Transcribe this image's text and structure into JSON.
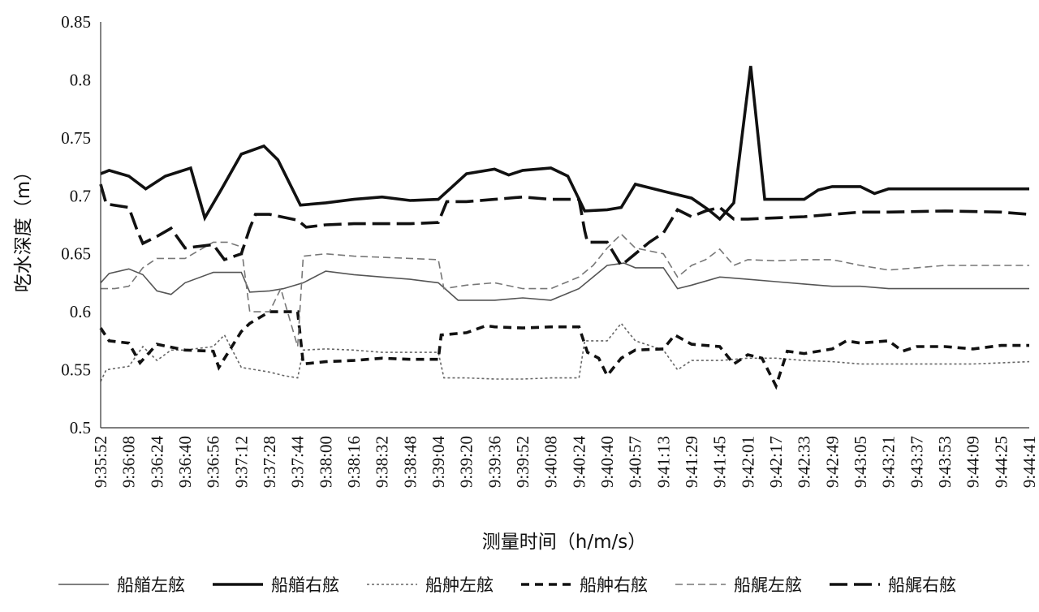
{
  "chart_data": {
    "type": "line",
    "title": "",
    "xlabel": "测量时间（h/m/s）",
    "ylabel": "吃水深度（m）",
    "ylim": [
      0.5,
      0.85
    ],
    "yticks": [
      "0.85",
      "0.8",
      "0.75",
      "0.7",
      "0.65",
      "0.6",
      "0.55",
      "0.5"
    ],
    "grid": false,
    "legend_position": "bottom",
    "categories": [
      "9:35:52",
      "9:36:08",
      "9:36:24",
      "9:36:40",
      "9:36:56",
      "9:37:12",
      "9:37:28",
      "9:37:44",
      "9:38:00",
      "9:38:16",
      "9:38:32",
      "9:38:48",
      "9:39:04",
      "9:39:20",
      "9:39:36",
      "9:39:52",
      "9:40:08",
      "9:40:24",
      "9:40:40",
      "9:40:57",
      "9:41:13",
      "9:41:29",
      "9:41:45",
      "9:42:01",
      "9:42:17",
      "9:42:33",
      "9:42:49",
      "9:43:05",
      "9:43:21",
      "9:43:37",
      "9:43:53",
      "9:44:09",
      "9:44:25",
      "9:44:41"
    ],
    "series": [
      {
        "name": "船艏左舷",
        "style": "thin-solid",
        "points": [
          [
            0,
            0.625
          ],
          [
            0.3,
            0.633
          ],
          [
            1,
            0.637
          ],
          [
            1.5,
            0.632
          ],
          [
            2,
            0.618
          ],
          [
            2.5,
            0.615
          ],
          [
            3,
            0.625
          ],
          [
            4,
            0.634
          ],
          [
            5,
            0.634
          ],
          [
            5.3,
            0.617
          ],
          [
            6,
            0.618
          ],
          [
            6.5,
            0.62
          ],
          [
            7.2,
            0.625
          ],
          [
            8,
            0.635
          ],
          [
            9,
            0.632
          ],
          [
            10,
            0.63
          ],
          [
            11,
            0.628
          ],
          [
            12,
            0.625
          ],
          [
            12.7,
            0.61
          ],
          [
            14,
            0.61
          ],
          [
            15,
            0.612
          ],
          [
            16,
            0.61
          ],
          [
            17,
            0.62
          ],
          [
            17.5,
            0.63
          ],
          [
            18,
            0.64
          ],
          [
            18.6,
            0.642
          ],
          [
            19,
            0.638
          ],
          [
            20,
            0.638
          ],
          [
            20.5,
            0.62
          ],
          [
            21,
            0.623
          ],
          [
            22,
            0.63
          ],
          [
            23,
            0.628
          ],
          [
            24,
            0.626
          ],
          [
            25,
            0.624
          ],
          [
            26,
            0.622
          ],
          [
            27,
            0.622
          ],
          [
            28,
            0.62
          ],
          [
            30,
            0.62
          ],
          [
            31,
            0.62
          ],
          [
            33,
            0.62
          ]
        ]
      },
      {
        "name": "船艏右舷",
        "style": "thick-solid",
        "points": [
          [
            0,
            0.719
          ],
          [
            0.3,
            0.722
          ],
          [
            1,
            0.717
          ],
          [
            1.6,
            0.706
          ],
          [
            2.3,
            0.717
          ],
          [
            3.2,
            0.724
          ],
          [
            3.7,
            0.681
          ],
          [
            4.3,
            0.706
          ],
          [
            5,
            0.736
          ],
          [
            5.8,
            0.743
          ],
          [
            6.3,
            0.731
          ],
          [
            7.1,
            0.692
          ],
          [
            8,
            0.694
          ],
          [
            9,
            0.697
          ],
          [
            10,
            0.699
          ],
          [
            11,
            0.696
          ],
          [
            12,
            0.697
          ],
          [
            12.5,
            0.708
          ],
          [
            13,
            0.719
          ],
          [
            14,
            0.723
          ],
          [
            14.5,
            0.718
          ],
          [
            15,
            0.722
          ],
          [
            16,
            0.724
          ],
          [
            16.6,
            0.717
          ],
          [
            17.2,
            0.687
          ],
          [
            18,
            0.688
          ],
          [
            18.5,
            0.69
          ],
          [
            19,
            0.71
          ],
          [
            20,
            0.704
          ],
          [
            21,
            0.698
          ],
          [
            21.6,
            0.688
          ],
          [
            22,
            0.68
          ],
          [
            22.5,
            0.694
          ],
          [
            23.1,
            0.812
          ],
          [
            23.6,
            0.697
          ],
          [
            24,
            0.697
          ],
          [
            25,
            0.697
          ],
          [
            25.5,
            0.705
          ],
          [
            26,
            0.708
          ],
          [
            27,
            0.708
          ],
          [
            27.5,
            0.702
          ],
          [
            28,
            0.706
          ],
          [
            33,
            0.706
          ]
        ]
      },
      {
        "name": "船舯左舷",
        "style": "thin-dotted",
        "points": [
          [
            0,
            0.54
          ],
          [
            0.2,
            0.55
          ],
          [
            1,
            0.553
          ],
          [
            1.5,
            0.57
          ],
          [
            2,
            0.558
          ],
          [
            2.5,
            0.567
          ],
          [
            3,
            0.567
          ],
          [
            4,
            0.57
          ],
          [
            4.4,
            0.58
          ],
          [
            5,
            0.552
          ],
          [
            6,
            0.548
          ],
          [
            6.5,
            0.545
          ],
          [
            7,
            0.543
          ],
          [
            7.2,
            0.567
          ],
          [
            8,
            0.568
          ],
          [
            9,
            0.567
          ],
          [
            10,
            0.565
          ],
          [
            11,
            0.565
          ],
          [
            12,
            0.565
          ],
          [
            12.2,
            0.543
          ],
          [
            13,
            0.543
          ],
          [
            14,
            0.542
          ],
          [
            15,
            0.542
          ],
          [
            16,
            0.543
          ],
          [
            17,
            0.543
          ],
          [
            17.2,
            0.575
          ],
          [
            18,
            0.575
          ],
          [
            18.5,
            0.59
          ],
          [
            19,
            0.575
          ],
          [
            20,
            0.567
          ],
          [
            20.5,
            0.55
          ],
          [
            21,
            0.558
          ],
          [
            22,
            0.558
          ],
          [
            23,
            0.56
          ],
          [
            24,
            0.56
          ],
          [
            25,
            0.558
          ],
          [
            26,
            0.557
          ],
          [
            27,
            0.555
          ],
          [
            28,
            0.555
          ],
          [
            30,
            0.555
          ],
          [
            31,
            0.555
          ],
          [
            33,
            0.557
          ]
        ]
      },
      {
        "name": "船舯右舷",
        "style": "thick-dash",
        "points": [
          [
            0,
            0.586
          ],
          [
            0.3,
            0.575
          ],
          [
            1,
            0.573
          ],
          [
            1.4,
            0.556
          ],
          [
            2,
            0.572
          ],
          [
            3,
            0.567
          ],
          [
            4,
            0.566
          ],
          [
            4.2,
            0.552
          ],
          [
            5,
            0.583
          ],
          [
            5.3,
            0.59
          ],
          [
            6,
            0.6
          ],
          [
            7,
            0.6
          ],
          [
            7.2,
            0.555
          ],
          [
            8,
            0.557
          ],
          [
            9,
            0.558
          ],
          [
            10,
            0.56
          ],
          [
            11,
            0.559
          ],
          [
            12,
            0.559
          ],
          [
            12.1,
            0.58
          ],
          [
            13,
            0.582
          ],
          [
            13.7,
            0.588
          ],
          [
            14,
            0.587
          ],
          [
            15,
            0.586
          ],
          [
            16,
            0.587
          ],
          [
            17,
            0.587
          ],
          [
            17.3,
            0.565
          ],
          [
            17.7,
            0.56
          ],
          [
            18,
            0.545
          ],
          [
            18.5,
            0.56
          ],
          [
            19,
            0.567
          ],
          [
            20,
            0.568
          ],
          [
            20.4,
            0.58
          ],
          [
            21,
            0.572
          ],
          [
            22,
            0.57
          ],
          [
            22.5,
            0.555
          ],
          [
            23,
            0.563
          ],
          [
            23.5,
            0.56
          ],
          [
            24,
            0.536
          ],
          [
            24.4,
            0.566
          ],
          [
            25,
            0.564
          ],
          [
            26,
            0.568
          ],
          [
            26.5,
            0.575
          ],
          [
            27,
            0.573
          ],
          [
            28,
            0.575
          ],
          [
            28.5,
            0.566
          ],
          [
            29,
            0.57
          ],
          [
            30,
            0.57
          ],
          [
            31,
            0.568
          ],
          [
            32,
            0.571
          ],
          [
            33,
            0.571
          ]
        ]
      },
      {
        "name": "船艉左舷",
        "style": "thin-dash",
        "points": [
          [
            0,
            0.62
          ],
          [
            0.5,
            0.62
          ],
          [
            1,
            0.622
          ],
          [
            1.5,
            0.638
          ],
          [
            2,
            0.646
          ],
          [
            3,
            0.646
          ],
          [
            4,
            0.66
          ],
          [
            4.5,
            0.66
          ],
          [
            5,
            0.656
          ],
          [
            5.3,
            0.6
          ],
          [
            6,
            0.6
          ],
          [
            6.4,
            0.62
          ],
          [
            7,
            0.57
          ],
          [
            7.2,
            0.648
          ],
          [
            8,
            0.65
          ],
          [
            9,
            0.648
          ],
          [
            10,
            0.647
          ],
          [
            11,
            0.646
          ],
          [
            12,
            0.645
          ],
          [
            12.2,
            0.62
          ],
          [
            13,
            0.623
          ],
          [
            14,
            0.625
          ],
          [
            15,
            0.62
          ],
          [
            16,
            0.62
          ],
          [
            17,
            0.63
          ],
          [
            17.5,
            0.64
          ],
          [
            18,
            0.655
          ],
          [
            18.5,
            0.667
          ],
          [
            19,
            0.655
          ],
          [
            20,
            0.65
          ],
          [
            20.5,
            0.63
          ],
          [
            21,
            0.64
          ],
          [
            21.5,
            0.645
          ],
          [
            22,
            0.654
          ],
          [
            22.5,
            0.64
          ],
          [
            23,
            0.645
          ],
          [
            24,
            0.644
          ],
          [
            25,
            0.645
          ],
          [
            26,
            0.645
          ],
          [
            27,
            0.64
          ],
          [
            28,
            0.636
          ],
          [
            29,
            0.638
          ],
          [
            30,
            0.64
          ],
          [
            31,
            0.64
          ],
          [
            32,
            0.64
          ],
          [
            33,
            0.64
          ]
        ]
      },
      {
        "name": "船艉右舷",
        "style": "thick-longdash",
        "points": [
          [
            0,
            0.71
          ],
          [
            0.2,
            0.693
          ],
          [
            1,
            0.69
          ],
          [
            1.3,
            0.67
          ],
          [
            1.5,
            0.659
          ],
          [
            2,
            0.665
          ],
          [
            2.5,
            0.672
          ],
          [
            3,
            0.655
          ],
          [
            4,
            0.658
          ],
          [
            4.4,
            0.645
          ],
          [
            5,
            0.65
          ],
          [
            5.3,
            0.672
          ],
          [
            5.5,
            0.684
          ],
          [
            6,
            0.684
          ],
          [
            7,
            0.679
          ],
          [
            7.3,
            0.673
          ],
          [
            8,
            0.675
          ],
          [
            9,
            0.676
          ],
          [
            10,
            0.676
          ],
          [
            11,
            0.676
          ],
          [
            12,
            0.677
          ],
          [
            12.3,
            0.695
          ],
          [
            13,
            0.695
          ],
          [
            14,
            0.697
          ],
          [
            15,
            0.699
          ],
          [
            16,
            0.697
          ],
          [
            17,
            0.697
          ],
          [
            17.2,
            0.67
          ],
          [
            17.3,
            0.66
          ],
          [
            18,
            0.66
          ],
          [
            18.5,
            0.64
          ],
          [
            19,
            0.65
          ],
          [
            19.5,
            0.66
          ],
          [
            20,
            0.668
          ],
          [
            20.5,
            0.688
          ],
          [
            21,
            0.682
          ],
          [
            21.5,
            0.687
          ],
          [
            22,
            0.69
          ],
          [
            22.5,
            0.68
          ],
          [
            23,
            0.68
          ],
          [
            24,
            0.681
          ],
          [
            25,
            0.682
          ],
          [
            26,
            0.684
          ],
          [
            27,
            0.686
          ],
          [
            28,
            0.686
          ],
          [
            30,
            0.687
          ],
          [
            32,
            0.686
          ],
          [
            33,
            0.684
          ]
        ]
      }
    ]
  }
}
